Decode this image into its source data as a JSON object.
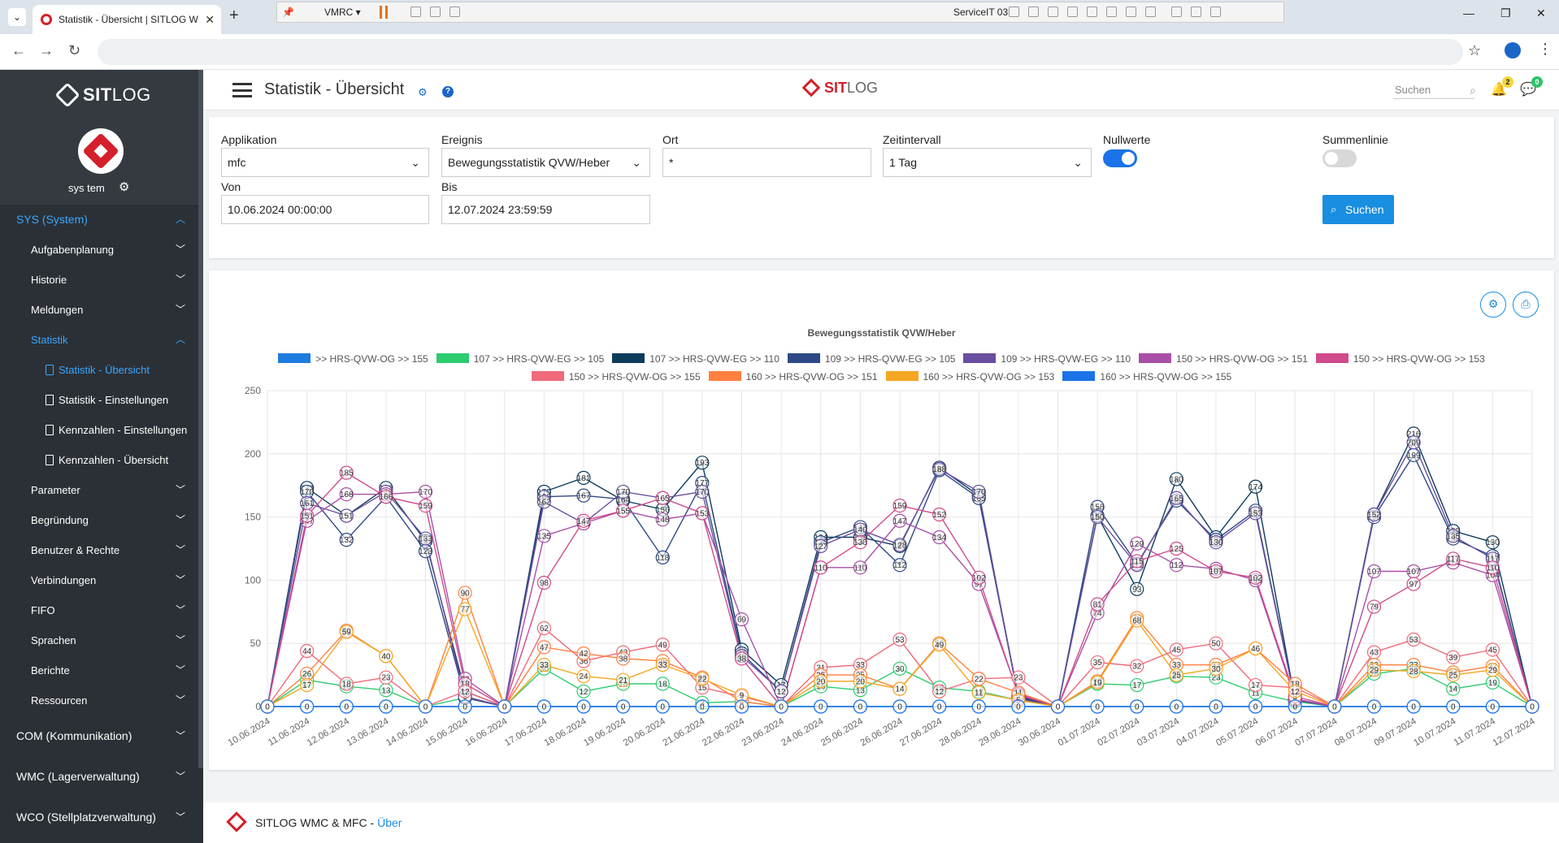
{
  "browser": {
    "tab_title": "Statistik - Übersicht | SITLOG W",
    "vmrc_label": "VMRC",
    "vm_host": "ServiceIT 03"
  },
  "sidebar": {
    "logo_bold": "SIT",
    "logo_light": "LOG",
    "user": "sys tem",
    "items": [
      {
        "label": "SYS (System)",
        "level": 0,
        "active": true,
        "chevron": "up"
      },
      {
        "label": "Aufgabenplanung",
        "level": 1,
        "chevron": "down"
      },
      {
        "label": "Historie",
        "level": 1,
        "chevron": "down"
      },
      {
        "label": "Meldungen",
        "level": 1,
        "chevron": "down"
      },
      {
        "label": "Statistik",
        "level": 1,
        "active": true,
        "chevron": "up"
      },
      {
        "label": "Statistik - Übersicht",
        "level": 2,
        "active": true
      },
      {
        "label": "Statistik - Einstellungen",
        "level": 2
      },
      {
        "label": "Kennzahlen - Einstellungen",
        "level": 2
      },
      {
        "label": "Kennzahlen - Übersicht",
        "level": 2
      },
      {
        "label": "Parameter",
        "level": 1,
        "chevron": "down"
      },
      {
        "label": "Begründung",
        "level": 1,
        "chevron": "down"
      },
      {
        "label": "Benutzer & Rechte",
        "level": 1,
        "chevron": "down"
      },
      {
        "label": "Verbindungen",
        "level": 1,
        "chevron": "down"
      },
      {
        "label": "FIFO",
        "level": 1,
        "chevron": "down"
      },
      {
        "label": "Sprachen",
        "level": 1,
        "chevron": "down"
      },
      {
        "label": "Berichte",
        "level": 1,
        "chevron": "down"
      },
      {
        "label": "Ressourcen",
        "level": 1,
        "chevron": "down"
      },
      {
        "label": "COM (Kommunikation)",
        "level": 0,
        "chevron": "down",
        "big": true
      },
      {
        "label": "WMC (Lagerverwaltung)",
        "level": 0,
        "chevron": "down",
        "big": true
      },
      {
        "label": "WCO (Stellplatzverwaltung)",
        "level": 0,
        "chevron": "down",
        "big": true
      }
    ]
  },
  "header": {
    "title": "Statistik - Übersicht",
    "logo_bold": "SIT",
    "logo_light": "LOG",
    "search_placeholder": "Suchen",
    "notifications": "2",
    "messages": "0"
  },
  "filter": {
    "applikation_label": "Applikation",
    "applikation_value": "mfc",
    "ereignis_label": "Ereignis",
    "ereignis_value": "Bewegungsstatistik QVW/Heber",
    "ort_label": "Ort",
    "ort_value": "*",
    "zeitintervall_label": "Zeitintervall",
    "zeitintervall_value": "1 Tag",
    "nullwerte_label": "Nullwerte",
    "nullwerte_on": true,
    "summenlinie_label": "Summenlinie",
    "summenlinie_on": false,
    "von_label": "Von",
    "von_value": "10.06.2024 00:00:00",
    "bis_label": "Bis",
    "bis_value": "12.07.2024 23:59:59",
    "search_button": "Suchen"
  },
  "footer": {
    "text": "SITLOG WMC & MFC - ",
    "link": "Über"
  },
  "chart_data": {
    "type": "line",
    "title": "Bewegungsstatistik QVW/Heber",
    "ylim": [
      0,
      250
    ],
    "yticks": [
      0,
      50,
      100,
      150,
      200,
      250
    ],
    "grid": true,
    "legend_position": "top",
    "categories": [
      "10.06.2024",
      "11.06.2024",
      "12.06.2024",
      "13.06.2024",
      "14.06.2024",
      "15.06.2024",
      "16.06.2024",
      "17.06.2024",
      "18.06.2024",
      "19.06.2024",
      "20.06.2024",
      "21.06.2024",
      "22.06.2024",
      "23.06.2024",
      "24.06.2024",
      "25.06.2024",
      "26.06.2024",
      "27.06.2024",
      "28.06.2024",
      "29.06.2024",
      "30.06.2024",
      "01.07.2024",
      "02.07.2024",
      "03.07.2024",
      "04.07.2024",
      "05.07.2024",
      "06.07.2024",
      "07.07.2024",
      "08.07.2024",
      "09.07.2024",
      "10.07.2024",
      "11.07.2024",
      "12.07.2024"
    ],
    "series": [
      {
        "name": ">> HRS-QVW-OG >> 155",
        "color": "#1e7be0",
        "values": [
          0,
          0,
          0,
          0,
          0,
          0,
          0,
          0,
          0,
          0,
          0,
          0,
          0,
          0,
          0,
          0,
          0,
          0,
          0,
          0,
          0,
          0,
          0,
          0,
          0,
          0,
          0,
          0,
          0,
          0,
          0,
          0,
          0
        ]
      },
      {
        "name": "107 >> HRS-QVW-EG >> 105",
        "color": "#2ecc71",
        "values": [
          0,
          21,
          16,
          13,
          0,
          7,
          0,
          30,
          12,
          18,
          18,
          3,
          4,
          0,
          16,
          13,
          30,
          15,
          12,
          5,
          0,
          18,
          17,
          24,
          23,
          11,
          4,
          0,
          26,
          30,
          14,
          19,
          0
        ]
      },
      {
        "name": "107 >> HRS-QVW-EG >> 110",
        "color": "#0d3b5c",
        "values": [
          0,
          173,
          151,
          173,
          131,
          12,
          0,
          170,
          181,
          163,
          156,
          193,
          45,
          17,
          134,
          134,
          127,
          189,
          167,
          8,
          0,
          151,
          93,
          180,
          134,
          174,
          5,
          0,
          152,
          216,
          139,
          130,
          0
        ]
      },
      {
        "name": "109 >> HRS-QVW-EG >> 105",
        "color": "#2d4a86",
        "values": [
          0,
          170,
          132,
          166,
          123,
          7,
          0,
          166,
          167,
          164,
          118,
          177,
          42,
          12,
          130,
          142,
          112,
          187,
          165,
          7,
          0,
          158,
          113,
          163,
          132,
          155,
          6,
          0,
          150,
          199,
          133,
          119,
          0
        ]
      },
      {
        "name": "109 >> HRS-QVW-EG >> 110",
        "color": "#6a4fa0",
        "values": [
          0,
          161,
          151,
          170,
          133,
          8,
          0,
          162,
          145,
          170,
          165,
          170,
          40,
          12,
          127,
          140,
          128,
          188,
          170,
          6,
          0,
          150,
          112,
          165,
          130,
          153,
          5,
          0,
          152,
          209,
          135,
          117,
          0
        ]
      },
      {
        "name": "150 >> HRS-QVW-OG >> 151",
        "color": "#a84fa8",
        "values": [
          0,
          147,
          168,
          168,
          170,
          22,
          0,
          135,
          145,
          155,
          148,
          153,
          69,
          0,
          110,
          110,
          147,
          134,
          97,
          10,
          0,
          74,
          129,
          112,
          109,
          100,
          6,
          0,
          107,
          107,
          114,
          104,
          0
        ]
      },
      {
        "name": "150 >> HRS-QVW-OG >> 153",
        "color": "#d14a8b",
        "values": [
          0,
          151,
          185,
          166,
          159,
          18,
          0,
          98,
          147,
          155,
          165,
          153,
          38,
          0,
          110,
          130,
          159,
          152,
          102,
          9,
          0,
          81,
          115,
          125,
          107,
          102,
          8,
          0,
          79,
          97,
          117,
          110,
          0
        ]
      },
      {
        "name": "150 >> HRS-QVW-OG >> 155",
        "color": "#f06a7a",
        "values": [
          0,
          44,
          18,
          23,
          0,
          12,
          0,
          62,
          36,
          43,
          49,
          15,
          8,
          0,
          31,
          33,
          53,
          12,
          22,
          23,
          0,
          35,
          32,
          45,
          50,
          17,
          15,
          0,
          43,
          53,
          39,
          45,
          0
        ]
      },
      {
        "name": "160 >> HRS-QVW-OG >> 151",
        "color": "#ff8040",
        "values": [
          0,
          26,
          60,
          40,
          0,
          90,
          0,
          47,
          42,
          38,
          36,
          23,
          4,
          0,
          25,
          25,
          14,
          50,
          22,
          11,
          0,
          20,
          70,
          33,
          33,
          46,
          18,
          0,
          33,
          33,
          27,
          32,
          0
        ]
      },
      {
        "name": "160 >> HRS-QVW-OG >> 153",
        "color": "#f5a623",
        "values": [
          0,
          17,
          59,
          40,
          0,
          77,
          0,
          33,
          24,
          21,
          33,
          22,
          9,
          0,
          20,
          20,
          14,
          49,
          11,
          5,
          0,
          19,
          68,
          25,
          30,
          46,
          12,
          0,
          29,
          28,
          25,
          29,
          0
        ]
      },
      {
        "name": "160 >> HRS-QVW-OG >> 155",
        "color": "#1a73e8",
        "values": [
          0,
          0,
          0,
          0,
          0,
          0,
          0,
          0,
          0,
          0,
          0,
          0,
          0,
          0,
          0,
          0,
          0,
          0,
          0,
          0,
          0,
          0,
          0,
          0,
          0,
          0,
          0,
          0,
          0,
          0,
          0,
          0,
          0
        ]
      }
    ]
  }
}
